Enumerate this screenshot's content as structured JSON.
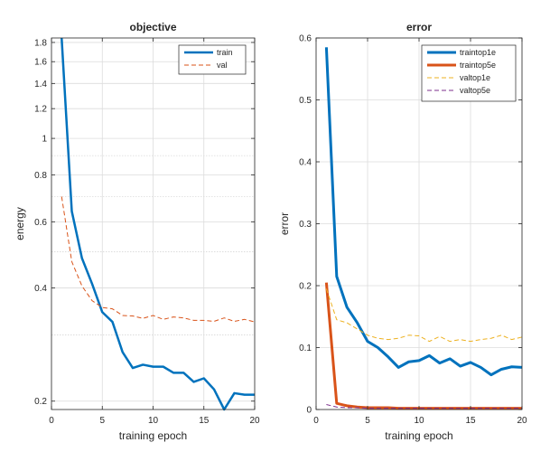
{
  "chart_data": [
    {
      "type": "line",
      "title": "objective",
      "xlabel": "training epoch",
      "ylabel": "energy",
      "yscale": "log",
      "xlim": [
        0,
        20
      ],
      "ylim": [
        0.19,
        1.85
      ],
      "xticks": [
        0,
        5,
        10,
        15,
        20
      ],
      "yticks": [
        0.2,
        0.4,
        0.6,
        0.8,
        1,
        1.2,
        1.4,
        1.6,
        1.8
      ],
      "grid": true,
      "legend_position": "top-right",
      "x": [
        1,
        2,
        3,
        4,
        5,
        6,
        7,
        8,
        9,
        10,
        11,
        12,
        13,
        14,
        15,
        16,
        17,
        18,
        19,
        20
      ],
      "series": [
        {
          "name": "train",
          "color": "#0072BD",
          "style": "solid",
          "values": [
            1.85,
            0.64,
            0.48,
            0.41,
            0.345,
            0.325,
            0.27,
            0.245,
            0.25,
            0.247,
            0.247,
            0.238,
            0.238,
            0.225,
            0.23,
            0.215,
            0.19,
            0.21,
            0.208,
            0.208
          ]
        },
        {
          "name": "val",
          "color": "#D95319",
          "style": "dashed",
          "values": [
            0.7,
            0.47,
            0.405,
            0.37,
            0.355,
            0.352,
            0.338,
            0.337,
            0.332,
            0.338,
            0.33,
            0.335,
            0.333,
            0.328,
            0.328,
            0.326,
            0.333,
            0.326,
            0.33,
            0.325
          ]
        }
      ]
    },
    {
      "type": "line",
      "title": "error",
      "xlabel": "training epoch",
      "ylabel": "error",
      "xlim": [
        0,
        20
      ],
      "ylim": [
        0,
        0.6
      ],
      "xticks": [
        0,
        5,
        10,
        15,
        20
      ],
      "yticks": [
        0,
        0.1,
        0.2,
        0.3,
        0.4,
        0.5,
        0.6
      ],
      "grid": true,
      "legend_position": "top-right",
      "x": [
        1,
        2,
        3,
        4,
        5,
        6,
        7,
        8,
        9,
        10,
        11,
        12,
        13,
        14,
        15,
        16,
        17,
        18,
        19,
        20
      ],
      "series": [
        {
          "name": "traintop1e",
          "color": "#0072BD",
          "style": "solid",
          "width": 3,
          "values": [
            0.585,
            0.215,
            0.165,
            0.14,
            0.11,
            0.1,
            0.085,
            0.068,
            0.077,
            0.079,
            0.087,
            0.075,
            0.082,
            0.07,
            0.076,
            0.068,
            0.056,
            0.065,
            0.069,
            0.068
          ]
        },
        {
          "name": "traintop5e",
          "color": "#D95319",
          "style": "solid",
          "width": 3,
          "values": [
            0.205,
            0.01,
            0.006,
            0.004,
            0.003,
            0.003,
            0.003,
            0.002,
            0.002,
            0.002,
            0.002,
            0.002,
            0.002,
            0.002,
            0.002,
            0.002,
            0.002,
            0.002,
            0.002,
            0.002
          ]
        },
        {
          "name": "valtop1e",
          "color": "#EDB120",
          "style": "dashed",
          "width": 1,
          "values": [
            0.195,
            0.145,
            0.14,
            0.13,
            0.12,
            0.115,
            0.113,
            0.115,
            0.12,
            0.119,
            0.11,
            0.118,
            0.11,
            0.113,
            0.11,
            0.113,
            0.115,
            0.12,
            0.113,
            0.117
          ]
        },
        {
          "name": "valtop5e",
          "color": "#7E2F8E",
          "style": "dashed",
          "width": 1,
          "values": [
            0.008,
            0.004,
            0.003,
            0.003,
            0.002,
            0.002,
            0.002,
            0.002,
            0.002,
            0.002,
            0.002,
            0.002,
            0.002,
            0.002,
            0.002,
            0.002,
            0.002,
            0.002,
            0.002,
            0.002
          ]
        }
      ]
    }
  ]
}
